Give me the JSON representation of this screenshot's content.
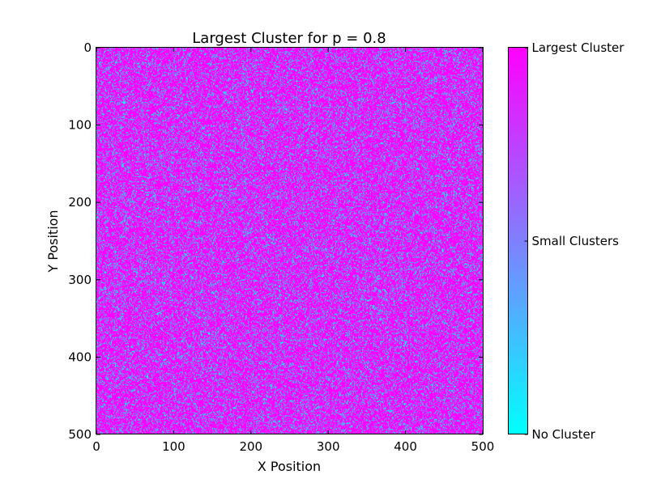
{
  "chart_data": {
    "type": "heatmap",
    "title": "Largest Cluster for p = 0.8",
    "xlabel": "X Position",
    "ylabel": "Y Position",
    "xlim": [
      0,
      500
    ],
    "ylim": [
      500,
      0
    ],
    "x_ticks": [
      "0",
      "100",
      "200",
      "300",
      "400",
      "500"
    ],
    "y_ticks": [
      "0",
      "100",
      "200",
      "300",
      "400",
      "500"
    ],
    "occupation_probability": 0.8,
    "grid_size": [
      500,
      500
    ],
    "grid": false,
    "colorbar": {
      "position": "right",
      "colormap": "cool",
      "labels": [
        "No Cluster",
        "Small Clusters",
        "Largest Cluster"
      ],
      "colors": [
        "#00ffff",
        "#7f80ff",
        "#ff00ff"
      ]
    },
    "category_colors": {
      "no_cluster": "#00ffff",
      "small_clusters": "#7f80ff",
      "largest_cluster": "#ff00ff"
    }
  }
}
